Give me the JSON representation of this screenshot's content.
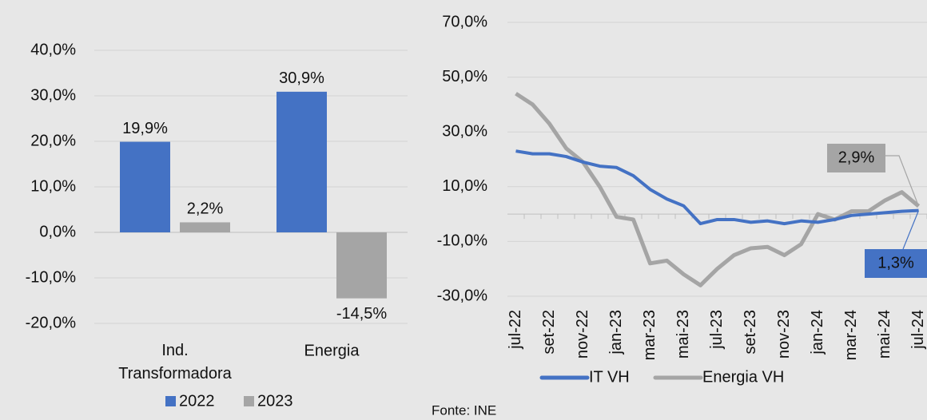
{
  "chart_data": [
    {
      "type": "bar",
      "categories": [
        "Ind. Transformadora",
        "Energia"
      ],
      "series": [
        {
          "name": "2022",
          "color": "#4472c4",
          "values": [
            19.9,
            30.9
          ],
          "value_labels": [
            "19,9%",
            "30,9%"
          ]
        },
        {
          "name": "2023",
          "color": "#a5a5a5",
          "values": [
            2.2,
            -14.5
          ],
          "value_labels": [
            "2,2%",
            "-14,5%"
          ]
        }
      ],
      "ylim": [
        -20,
        40
      ],
      "yticks": [
        {
          "value": -20,
          "label": "-20,0%"
        },
        {
          "value": -10,
          "label": "-10,0%"
        },
        {
          "value": 0,
          "label": "0,0%"
        },
        {
          "value": 10,
          "label": "10,0%"
        },
        {
          "value": 20,
          "label": "20,0%"
        },
        {
          "value": 30,
          "label": "30,0%"
        },
        {
          "value": 40,
          "label": "40,0%"
        }
      ],
      "grid": true,
      "legend": "bottom"
    },
    {
      "type": "line",
      "categories": [
        "jul-22",
        null,
        "set-22",
        null,
        "nov-22",
        null,
        "jan-23",
        null,
        "mar-23",
        null,
        "mai-23",
        null,
        "jul-23",
        null,
        "set-23",
        null,
        "nov-23",
        null,
        "jan-24",
        null,
        "mar-24",
        null,
        "mai-24",
        null,
        "jul-24"
      ],
      "series": [
        {
          "name": "IT VH",
          "color": "#4472c4",
          "values": [
            23,
            22,
            22,
            21,
            19,
            17.5,
            17,
            14,
            9,
            5.5,
            3,
            -3.5,
            -2,
            -2,
            -3,
            -2.5,
            -3.5,
            -2.5,
            -3,
            -2,
            -0.5,
            0,
            0.5,
            1,
            1.3
          ],
          "value_labels": [
            null,
            null,
            null,
            null,
            null,
            null,
            null,
            null,
            null,
            null,
            null,
            null,
            null,
            null,
            null,
            null,
            null,
            null,
            null,
            null,
            null,
            null,
            null,
            null,
            "1,3%"
          ]
        },
        {
          "name": "Energia VH",
          "color": "#a5a5a5",
          "values": [
            44,
            40,
            33,
            24,
            19,
            10,
            -1,
            -2,
            -18,
            -17,
            -22,
            -26,
            -20,
            -15,
            -12.5,
            -12,
            -15,
            -11,
            0,
            -2,
            1,
            1,
            5,
            8,
            2.9
          ],
          "value_labels": [
            null,
            null,
            null,
            null,
            null,
            null,
            null,
            null,
            null,
            null,
            null,
            null,
            null,
            null,
            null,
            null,
            null,
            null,
            null,
            null,
            null,
            null,
            null,
            null,
            "2,9%"
          ]
        }
      ],
      "ylim": [
        -30,
        70
      ],
      "yticks": [
        {
          "value": -30,
          "label": "-30,0%"
        },
        {
          "value": -10,
          "label": "-10,0%"
        },
        {
          "value": 10,
          "label": "10,0%"
        },
        {
          "value": 30,
          "label": "30,0%"
        },
        {
          "value": 50,
          "label": "50,0%"
        },
        {
          "value": 70,
          "label": "70,0%"
        }
      ],
      "grid": true,
      "legend": "bottom"
    }
  ],
  "source": "Fonte: INE"
}
